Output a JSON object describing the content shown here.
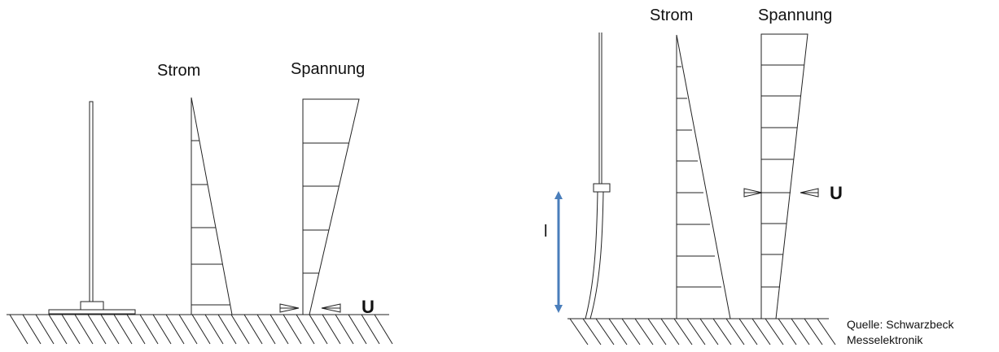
{
  "left_panel": {
    "current_label": "Strom",
    "voltage_label": "Spannung",
    "feed_label": "U"
  },
  "right_panel": {
    "current_label": "Strom",
    "voltage_label": "Spannung",
    "feed_label": "U",
    "length_label": "l"
  },
  "source": {
    "line1": "Quelle: Schwarzbeck",
    "line2": "Messelektronik"
  },
  "colors": {
    "line": "#222222",
    "arrow": "#4a7ebb"
  }
}
